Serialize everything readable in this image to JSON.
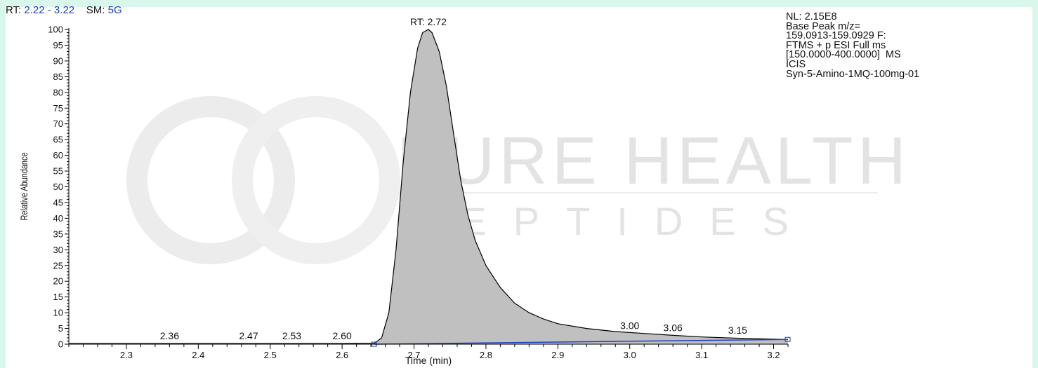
{
  "header": {
    "rt_label": "RT:",
    "rt_range": "2.22 - 3.22",
    "sm_label": "SM:",
    "sm_value": "5G"
  },
  "info_lines": [
    "NL: 2.15E8",
    "Base Peak m/z=",
    "159.0913-159.0929 F:",
    "FTMS + p ESI Full ms",
    "[150.0000-400.0000]  MS",
    "ICIS",
    "Syn-5-Amino-1MQ-100mg-01"
  ],
  "watermark": {
    "line1": "PURE HEALTH",
    "line2": "PEPTIDES"
  },
  "colors": {
    "background": "#d9f7ea",
    "peak_fill": "#c0c0c0",
    "baseline": "#1f3fbf"
  },
  "chart_data": {
    "type": "area",
    "xlabel": "Time (min)",
    "ylabel": "Relative Abundance",
    "xlim": [
      2.22,
      3.22
    ],
    "ylim": [
      0,
      100
    ],
    "x_ticks": [
      "2.3",
      "2.4",
      "2.5",
      "2.6",
      "2.7",
      "2.8",
      "2.9",
      "3.0",
      "3.1",
      "3.2"
    ],
    "y_ticks": [
      "0",
      "5",
      "10",
      "15",
      "20",
      "25",
      "30",
      "35",
      "40",
      "45",
      "50",
      "55",
      "60",
      "65",
      "70",
      "75",
      "80",
      "85",
      "90",
      "95",
      "100"
    ],
    "peak_labels": [
      {
        "text": "RT: 2.72",
        "x": 2.72,
        "y": 100
      },
      {
        "text": "2.36",
        "x": 2.36,
        "y": 0.2
      },
      {
        "text": "2.47",
        "x": 2.47,
        "y": 0.2
      },
      {
        "text": "2.53",
        "x": 2.53,
        "y": 0.2
      },
      {
        "text": "2.60",
        "x": 2.6,
        "y": 0.2
      },
      {
        "text": "3.00",
        "x": 3.0,
        "y": 3.5
      },
      {
        "text": "3.06",
        "x": 3.06,
        "y": 2.8
      },
      {
        "text": "3.15",
        "x": 3.15,
        "y": 2.0
      }
    ],
    "series": [
      {
        "x": [
          2.22,
          2.3,
          2.4,
          2.5,
          2.6,
          2.645,
          2.655,
          2.665,
          2.675,
          2.685,
          2.695,
          2.705,
          2.712,
          2.72,
          2.725,
          2.735,
          2.745,
          2.755,
          2.765,
          2.775,
          2.785,
          2.8,
          2.82,
          2.84,
          2.86,
          2.88,
          2.9,
          2.94,
          2.98,
          3.02,
          3.06,
          3.1,
          3.15,
          3.2,
          3.22
        ],
        "y": [
          0.2,
          0.2,
          0.2,
          0.2,
          0.2,
          0.3,
          2,
          10,
          30,
          58,
          80,
          94,
          99,
          100,
          99,
          93,
          82,
          67,
          52,
          41,
          33,
          25,
          18,
          13,
          10,
          8,
          6.5,
          5,
          4,
          3.4,
          2.8,
          2.3,
          1.9,
          1.6,
          1.5
        ]
      }
    ],
    "baseline": {
      "x": [
        2.645,
        3.22
      ],
      "y": [
        0,
        1.5
      ]
    }
  }
}
